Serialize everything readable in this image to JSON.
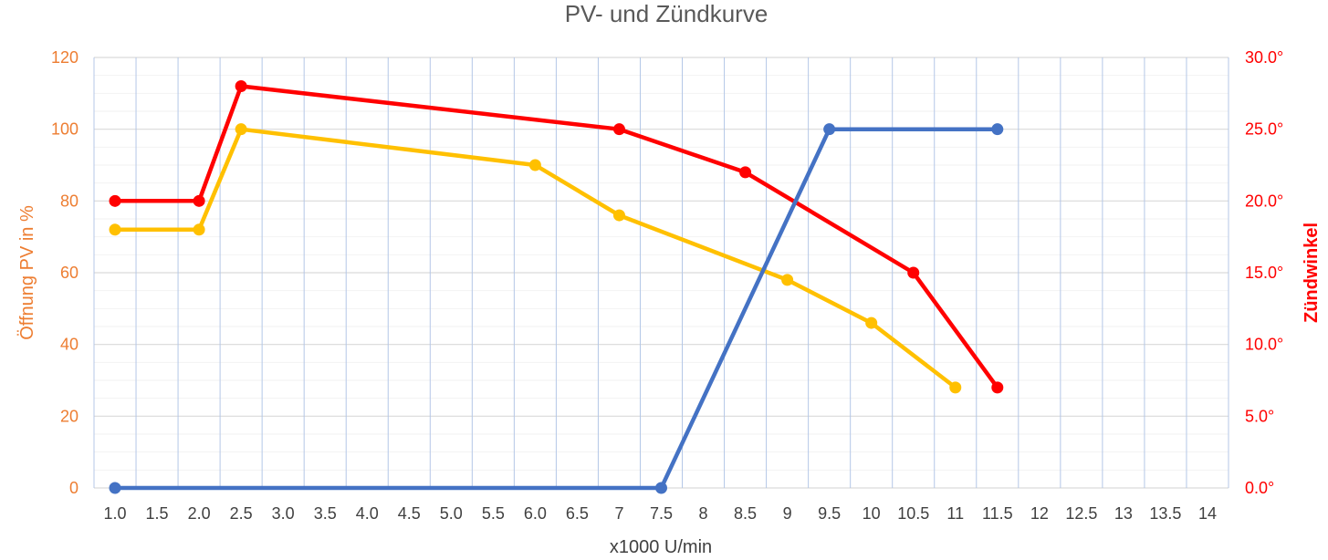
{
  "chart_data": {
    "type": "line",
    "title": "PV- und Zündkurve",
    "xlabel": "x1000 U/min",
    "ylabel": "Öffnung PV in %",
    "y2label": "Zündwinkel",
    "categories": [
      "1.0",
      "1.5",
      "2.0",
      "2.5",
      "3.0",
      "3.5",
      "4.0",
      "4.5",
      "5.0",
      "5.5",
      "6.0",
      "6.5",
      "7",
      "7.5",
      "8",
      "8.5",
      "9",
      "9.5",
      "10",
      "10.5",
      "11",
      "11.5",
      "12",
      "12.5",
      "13",
      "13.5",
      "14"
    ],
    "ylim": [
      0,
      120
    ],
    "yticks": [
      "0",
      "20",
      "40",
      "60",
      "80",
      "100",
      "120"
    ],
    "y2lim": [
      0,
      30
    ],
    "y2ticks": [
      "0.0°",
      "5.0°",
      "10.0°",
      "15.0°",
      "20.0°",
      "25.0°",
      "30.0°"
    ],
    "grid": true,
    "colors": {
      "left_axis": "#ed7d31",
      "right_axis": "#ff0000",
      "title": "#595959",
      "grid_major": "#d9d9d9",
      "grid_minor": "#f2f2f2",
      "grid_vertical": "#b4c7e7"
    },
    "series": [
      {
        "axis": "right",
        "color": "#ff0000",
        "points": [
          [
            1.0,
            20
          ],
          [
            2.0,
            20
          ],
          [
            2.5,
            28
          ],
          [
            7.0,
            25
          ],
          [
            8.5,
            22
          ],
          [
            10.5,
            15
          ],
          [
            11.5,
            7
          ]
        ]
      },
      {
        "axis": "left",
        "color": "#ffc000",
        "points": [
          [
            1.0,
            72
          ],
          [
            2.0,
            72
          ],
          [
            2.5,
            100
          ],
          [
            6.0,
            90
          ],
          [
            7.0,
            76
          ],
          [
            9.0,
            58
          ],
          [
            10.0,
            46
          ],
          [
            11.0,
            28
          ]
        ]
      },
      {
        "axis": "left",
        "color": "#4472c4",
        "points": [
          [
            1.0,
            0
          ],
          [
            7.5,
            0
          ],
          [
            9.5,
            100
          ],
          [
            11.5,
            100
          ]
        ]
      }
    ]
  }
}
